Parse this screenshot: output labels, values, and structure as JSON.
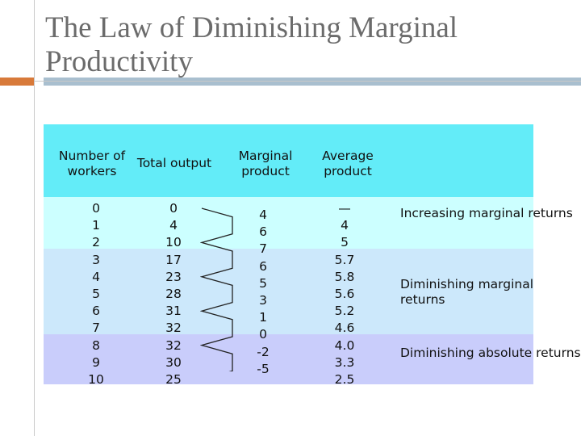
{
  "slide": {
    "title": "The Law of Diminishing Marginal Productivity"
  },
  "table": {
    "headers": {
      "workers": "Number of workers",
      "total_output": "Total output",
      "marginal_product": "Marginal product",
      "average_product": "Average product"
    },
    "workers": [
      "0",
      "1",
      "2",
      "3",
      "4",
      "5",
      "6",
      "7",
      "8",
      "9",
      "10"
    ],
    "total_output": [
      "0",
      "4",
      "10",
      "17",
      "23",
      "28",
      "31",
      "32",
      "32",
      "30",
      "25"
    ],
    "marginal_product": [
      "4",
      "6",
      "7",
      "6",
      "5",
      "3",
      "1",
      "0",
      "-2",
      "-5"
    ],
    "average_product": [
      "—",
      "4",
      "5",
      "5.7",
      "5.8",
      "5.6",
      "5.2",
      "4.6",
      "4.0",
      "3.3",
      "2.5"
    ],
    "regions": [
      {
        "label": "Increasing marginal returns",
        "color": "#ccffff"
      },
      {
        "label": "Diminishing marginal returns",
        "color": "#cce8fb"
      },
      {
        "label": "Diminishing absolute returns",
        "color": "#c9cdfb"
      }
    ],
    "header_color": "#63ecf8"
  }
}
